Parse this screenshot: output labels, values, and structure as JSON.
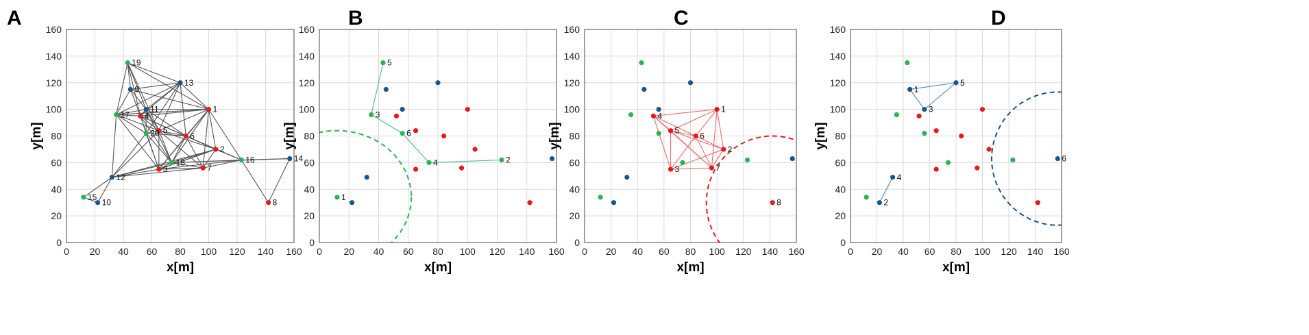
{
  "colors": {
    "green": "#27b552",
    "blue": "#14578f",
    "red": "#e31b1b",
    "greenLine": "#43c474",
    "redLine": "#ee6b6b",
    "blueLine": "#4a86bf",
    "grayLine": "#555555"
  },
  "chart_data": [
    {
      "panel": "A",
      "type": "scatter",
      "xlabel": "x[m]",
      "ylabel": "y[m]",
      "xlim": [
        0,
        160
      ],
      "ylim": [
        0,
        160
      ],
      "xticks": [
        0,
        20,
        40,
        60,
        80,
        100,
        120,
        140,
        160
      ],
      "yticks": [
        0,
        20,
        40,
        60,
        80,
        100,
        120,
        140,
        160
      ],
      "points": [
        {
          "x": 100,
          "y": 100,
          "c": "red",
          "label": "1"
        },
        {
          "x": 105,
          "y": 70,
          "c": "red",
          "label": "2"
        },
        {
          "x": 65,
          "y": 55,
          "c": "red",
          "label": "3"
        },
        {
          "x": 52,
          "y": 95,
          "c": "red",
          "label": "4"
        },
        {
          "x": 65,
          "y": 84,
          "c": "red",
          "label": "5"
        },
        {
          "x": 84,
          "y": 80,
          "c": "red",
          "label": "6"
        },
        {
          "x": 96,
          "y": 56,
          "c": "red",
          "label": "7"
        },
        {
          "x": 142,
          "y": 30,
          "c": "red",
          "label": "8"
        },
        {
          "x": 45,
          "y": 115,
          "c": "blue",
          "label": "9"
        },
        {
          "x": 22,
          "y": 30,
          "c": "blue",
          "label": "10"
        },
        {
          "x": 56,
          "y": 100,
          "c": "blue",
          "label": "11"
        },
        {
          "x": 32,
          "y": 49,
          "c": "blue",
          "label": "12"
        },
        {
          "x": 80,
          "y": 120,
          "c": "blue",
          "label": "13"
        },
        {
          "x": 157,
          "y": 63,
          "c": "blue",
          "label": "14"
        },
        {
          "x": 12,
          "y": 34,
          "c": "green",
          "label": "15"
        },
        {
          "x": 123,
          "y": 62,
          "c": "green",
          "label": "16"
        },
        {
          "x": 35,
          "y": 96,
          "c": "green",
          "label": "17"
        },
        {
          "x": 74,
          "y": 60,
          "c": "green",
          "label": "18"
        },
        {
          "x": 43,
          "y": 135,
          "c": "green",
          "label": "19"
        },
        {
          "x": 56,
          "y": 82,
          "c": "green",
          "label": "20"
        }
      ],
      "edges": [
        [
          19,
          13
        ],
        [
          19,
          17
        ],
        [
          19,
          9
        ],
        [
          19,
          1
        ],
        [
          19,
          11
        ],
        [
          19,
          5
        ],
        [
          19,
          4
        ],
        [
          13,
          9
        ],
        [
          13,
          11
        ],
        [
          13,
          1
        ],
        [
          13,
          4
        ],
        [
          13,
          5
        ],
        [
          13,
          20
        ],
        [
          13,
          17
        ],
        [
          13,
          6
        ],
        [
          9,
          17
        ],
        [
          9,
          11
        ],
        [
          9,
          1
        ],
        [
          9,
          4
        ],
        [
          17,
          11
        ],
        [
          17,
          4
        ],
        [
          17,
          5
        ],
        [
          17,
          20
        ],
        [
          17,
          12
        ],
        [
          17,
          3
        ],
        [
          17,
          1
        ],
        [
          11,
          1
        ],
        [
          11,
          4
        ],
        [
          11,
          5
        ],
        [
          11,
          20
        ],
        [
          11,
          6
        ],
        [
          11,
          18
        ],
        [
          1,
          6
        ],
        [
          1,
          5
        ],
        [
          1,
          2
        ],
        [
          1,
          16
        ],
        [
          1,
          7
        ],
        [
          1,
          3
        ],
        [
          1,
          18
        ],
        [
          1,
          4
        ],
        [
          4,
          5
        ],
        [
          4,
          20
        ],
        [
          4,
          6
        ],
        [
          4,
          3
        ],
        [
          4,
          18
        ],
        [
          4,
          2
        ],
        [
          5,
          20
        ],
        [
          5,
          6
        ],
        [
          5,
          3
        ],
        [
          5,
          18
        ],
        [
          5,
          7
        ],
        [
          5,
          2
        ],
        [
          5,
          12
        ],
        [
          20,
          6
        ],
        [
          20,
          3
        ],
        [
          20,
          18
        ],
        [
          20,
          12
        ],
        [
          6,
          2
        ],
        [
          6,
          7
        ],
        [
          6,
          3
        ],
        [
          6,
          18
        ],
        [
          6,
          16
        ],
        [
          2,
          16
        ],
        [
          2,
          7
        ],
        [
          2,
          18
        ],
        [
          2,
          3
        ],
        [
          16,
          14
        ],
        [
          16,
          8
        ],
        [
          16,
          7
        ],
        [
          16,
          18
        ],
        [
          16,
          3
        ],
        [
          14,
          8
        ],
        [
          14,
          18
        ],
        [
          7,
          3
        ],
        [
          7,
          18
        ],
        [
          18,
          3
        ],
        [
          12,
          3
        ],
        [
          12,
          18
        ],
        [
          12,
          10
        ],
        [
          12,
          15
        ],
        [
          12,
          7
        ],
        [
          12,
          2
        ],
        [
          15,
          10
        ],
        [
          3,
          2
        ]
      ]
    },
    {
      "panel": "B",
      "type": "scatter",
      "xlabel": "x[m]",
      "ylabel": "y[m]",
      "xlim": [
        0,
        160
      ],
      "ylim": [
        0,
        160
      ],
      "xticks": [
        0,
        20,
        40,
        60,
        80,
        100,
        120,
        140,
        160
      ],
      "yticks": [
        0,
        20,
        40,
        60,
        80,
        100,
        120,
        140,
        160
      ],
      "points": [
        {
          "x": 12,
          "y": 34,
          "c": "green",
          "label": "1"
        },
        {
          "x": 123,
          "y": 62,
          "c": "green",
          "label": "2"
        },
        {
          "x": 35,
          "y": 96,
          "c": "green",
          "label": "3"
        },
        {
          "x": 74,
          "y": 60,
          "c": "green",
          "label": "4"
        },
        {
          "x": 43,
          "y": 135,
          "c": "green",
          "label": "5"
        },
        {
          "x": 56,
          "y": 82,
          "c": "green",
          "label": "6"
        },
        {
          "x": 45,
          "y": 115,
          "c": "blue",
          "label": ""
        },
        {
          "x": 22,
          "y": 30,
          "c": "blue",
          "label": ""
        },
        {
          "x": 56,
          "y": 100,
          "c": "blue",
          "label": ""
        },
        {
          "x": 32,
          "y": 49,
          "c": "blue",
          "label": ""
        },
        {
          "x": 80,
          "y": 120,
          "c": "blue",
          "label": ""
        },
        {
          "x": 157,
          "y": 63,
          "c": "blue",
          "label": ""
        },
        {
          "x": 100,
          "y": 100,
          "c": "red",
          "label": ""
        },
        {
          "x": 105,
          "y": 70,
          "c": "red",
          "label": ""
        },
        {
          "x": 65,
          "y": 55,
          "c": "red",
          "label": ""
        },
        {
          "x": 52,
          "y": 95,
          "c": "red",
          "label": ""
        },
        {
          "x": 65,
          "y": 84,
          "c": "red",
          "label": ""
        },
        {
          "x": 84,
          "y": 80,
          "c": "red",
          "label": ""
        },
        {
          "x": 96,
          "y": 56,
          "c": "red",
          "label": ""
        },
        {
          "x": 142,
          "y": 30,
          "c": "red",
          "label": ""
        }
      ],
      "edges": [
        [
          5,
          3
        ],
        [
          3,
          6
        ],
        [
          6,
          4
        ],
        [
          4,
          2
        ]
      ],
      "edgeColor": "greenLine",
      "circle": {
        "cx": 12,
        "cy": 34,
        "r": 50,
        "color": "green"
      }
    },
    {
      "panel": "C",
      "type": "scatter",
      "xlabel": "x[m]",
      "ylabel": "y[m]",
      "xlim": [
        0,
        160
      ],
      "ylim": [
        0,
        160
      ],
      "xticks": [
        0,
        20,
        40,
        60,
        80,
        100,
        120,
        140,
        160
      ],
      "yticks": [
        0,
        20,
        40,
        60,
        80,
        100,
        120,
        140,
        160
      ],
      "points": [
        {
          "x": 100,
          "y": 100,
          "c": "red",
          "label": "1"
        },
        {
          "x": 105,
          "y": 70,
          "c": "red",
          "label": "2"
        },
        {
          "x": 65,
          "y": 55,
          "c": "red",
          "label": "3"
        },
        {
          "x": 52,
          "y": 95,
          "c": "red",
          "label": "4"
        },
        {
          "x": 65,
          "y": 84,
          "c": "red",
          "label": "5"
        },
        {
          "x": 84,
          "y": 80,
          "c": "red",
          "label": "6"
        },
        {
          "x": 96,
          "y": 56,
          "c": "red",
          "label": "7"
        },
        {
          "x": 142,
          "y": 30,
          "c": "red",
          "label": "8"
        },
        {
          "x": 45,
          "y": 115,
          "c": "blue",
          "label": ""
        },
        {
          "x": 22,
          "y": 30,
          "c": "blue",
          "label": ""
        },
        {
          "x": 56,
          "y": 100,
          "c": "blue",
          "label": ""
        },
        {
          "x": 32,
          "y": 49,
          "c": "blue",
          "label": ""
        },
        {
          "x": 80,
          "y": 120,
          "c": "blue",
          "label": ""
        },
        {
          "x": 157,
          "y": 63,
          "c": "blue",
          "label": ""
        },
        {
          "x": 12,
          "y": 34,
          "c": "green",
          "label": ""
        },
        {
          "x": 123,
          "y": 62,
          "c": "green",
          "label": ""
        },
        {
          "x": 35,
          "y": 96,
          "c": "green",
          "label": ""
        },
        {
          "x": 74,
          "y": 60,
          "c": "green",
          "label": ""
        },
        {
          "x": 43,
          "y": 135,
          "c": "green",
          "label": ""
        },
        {
          "x": 56,
          "y": 82,
          "c": "green",
          "label": ""
        }
      ],
      "edges": [
        [
          4,
          1
        ],
        [
          4,
          5
        ],
        [
          4,
          6
        ],
        [
          4,
          3
        ],
        [
          4,
          7
        ],
        [
          1,
          5
        ],
        [
          1,
          6
        ],
        [
          1,
          2
        ],
        [
          1,
          7
        ],
        [
          5,
          6
        ],
        [
          5,
          3
        ],
        [
          5,
          2
        ],
        [
          5,
          7
        ],
        [
          6,
          2
        ],
        [
          6,
          3
        ],
        [
          6,
          7
        ],
        [
          2,
          7
        ],
        [
          2,
          3
        ],
        [
          3,
          7
        ]
      ],
      "edgeColor": "redLine",
      "circle": {
        "cx": 142,
        "cy": 30,
        "r": 50,
        "color": "red"
      }
    },
    {
      "panel": "D",
      "type": "scatter",
      "xlabel": "x[m]",
      "ylabel": "y[m]",
      "xlim": [
        0,
        160
      ],
      "ylim": [
        0,
        160
      ],
      "xticks": [
        0,
        20,
        40,
        60,
        80,
        100,
        120,
        140,
        160
      ],
      "yticks": [
        0,
        20,
        40,
        60,
        80,
        100,
        120,
        140,
        160
      ],
      "points": [
        {
          "x": 45,
          "y": 115,
          "c": "blue",
          "label": "1"
        },
        {
          "x": 22,
          "y": 30,
          "c": "blue",
          "label": "2"
        },
        {
          "x": 56,
          "y": 100,
          "c": "blue",
          "label": "3"
        },
        {
          "x": 32,
          "y": 49,
          "c": "blue",
          "label": "4"
        },
        {
          "x": 80,
          "y": 120,
          "c": "blue",
          "label": "5"
        },
        {
          "x": 157,
          "y": 63,
          "c": "blue",
          "label": "6"
        },
        {
          "x": 12,
          "y": 34,
          "c": "green",
          "label": ""
        },
        {
          "x": 123,
          "y": 62,
          "c": "green",
          "label": ""
        },
        {
          "x": 35,
          "y": 96,
          "c": "green",
          "label": ""
        },
        {
          "x": 74,
          "y": 60,
          "c": "green",
          "label": ""
        },
        {
          "x": 43,
          "y": 135,
          "c": "green",
          "label": ""
        },
        {
          "x": 56,
          "y": 82,
          "c": "green",
          "label": ""
        },
        {
          "x": 100,
          "y": 100,
          "c": "red",
          "label": ""
        },
        {
          "x": 105,
          "y": 70,
          "c": "red",
          "label": ""
        },
        {
          "x": 65,
          "y": 55,
          "c": "red",
          "label": ""
        },
        {
          "x": 52,
          "y": 95,
          "c": "red",
          "label": ""
        },
        {
          "x": 65,
          "y": 84,
          "c": "red",
          "label": ""
        },
        {
          "x": 84,
          "y": 80,
          "c": "red",
          "label": ""
        },
        {
          "x": 96,
          "y": 56,
          "c": "red",
          "label": ""
        },
        {
          "x": 142,
          "y": 30,
          "c": "red",
          "label": ""
        }
      ],
      "edges": [
        [
          1,
          5
        ],
        [
          5,
          3
        ],
        [
          3,
          1
        ],
        [
          4,
          2
        ]
      ],
      "edgeColor": "blueLine",
      "circle": {
        "cx": 157,
        "cy": 63,
        "r": 50,
        "color": "blue"
      }
    }
  ]
}
